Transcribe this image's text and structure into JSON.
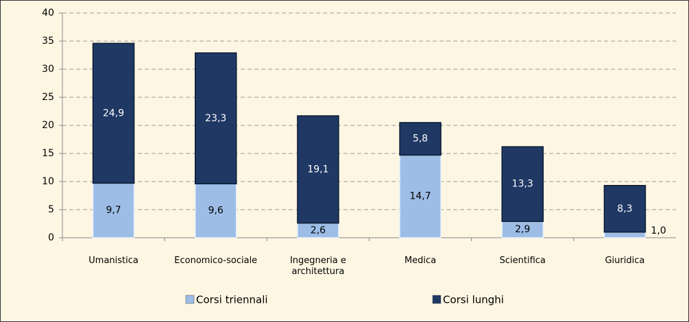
{
  "chart_data": {
    "type": "stacked_bar",
    "categories": [
      "Umanistica",
      "Economico-sociale",
      "Ingegneria e architettura",
      "Medica",
      "Scientifica",
      "Giuridica"
    ],
    "series": [
      {
        "name": "Corsi triennali",
        "color": "#9dbde6",
        "values": [
          9.7,
          9.6,
          2.6,
          14.7,
          2.9,
          1.0
        ],
        "value_labels": [
          "9,7",
          "9,6",
          "2,6",
          "14,7",
          "2,9",
          "1,0"
        ]
      },
      {
        "name": "Corsi lunghi",
        "color": "#1f3864",
        "values": [
          24.9,
          23.3,
          19.1,
          5.8,
          13.3,
          8.3
        ],
        "value_labels": [
          "24,9",
          "23,3",
          "19,1",
          "5,8",
          "13,3",
          "8,3"
        ]
      }
    ],
    "ylim": [
      0,
      40
    ],
    "yticks": [
      0,
      5,
      10,
      15,
      20,
      25,
      30,
      35,
      40
    ],
    "grid": true,
    "legend": "bottom"
  }
}
